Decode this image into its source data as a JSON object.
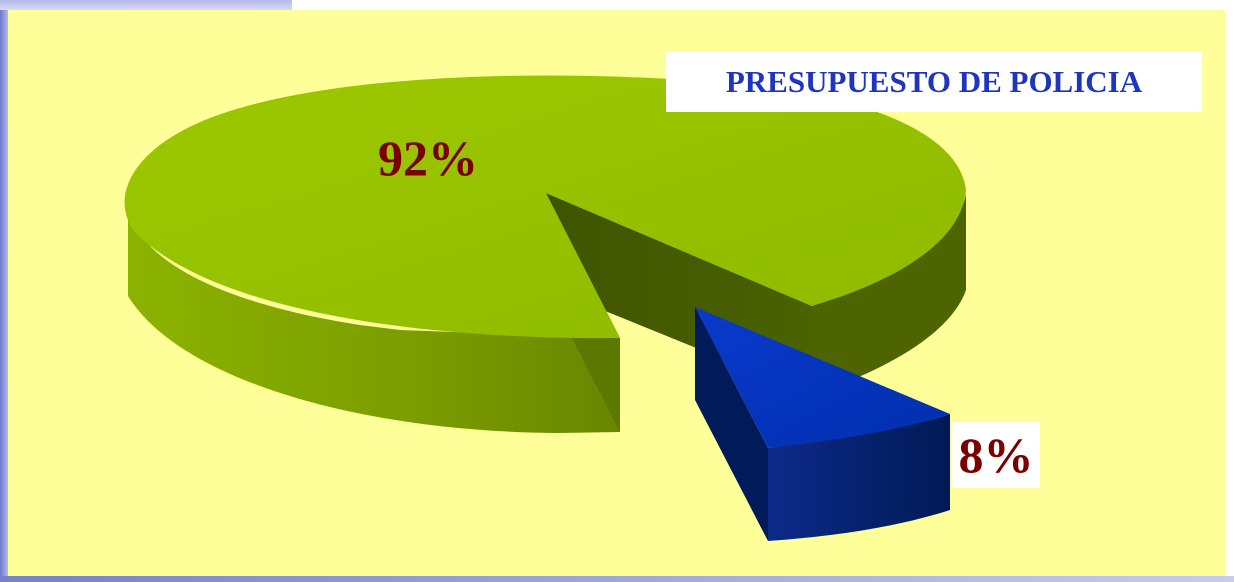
{
  "chart_data": {
    "type": "pie",
    "title": "PRESUPUESTO DE POLICIA",
    "slices": [
      {
        "label": "92%",
        "value": 92,
        "color": "#94c000"
      },
      {
        "label": "8%",
        "value": 8,
        "color": "#0033cc"
      }
    ],
    "exploded_slice": "8%",
    "style": "3d"
  },
  "colors": {
    "plot_background": "#ffff99",
    "title_color": "#1f35c0",
    "label_color": "#7a0000"
  }
}
